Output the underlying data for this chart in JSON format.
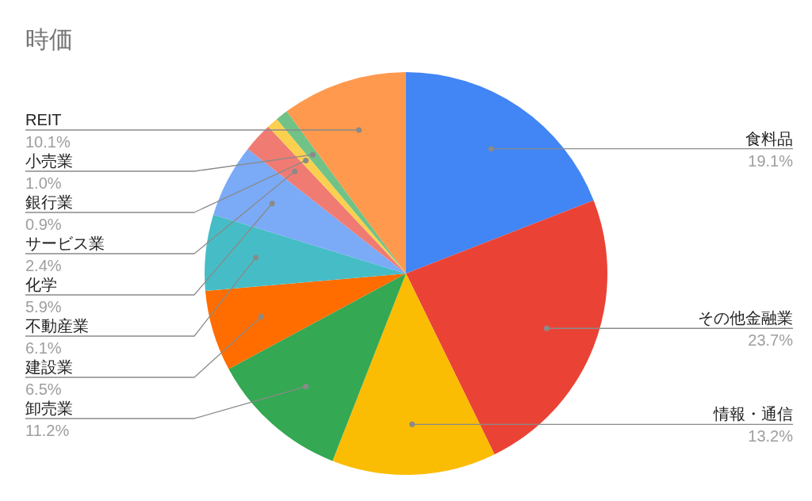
{
  "chart_data": {
    "type": "pie",
    "title": "時価",
    "categories": [
      "食料品",
      "その他金融業",
      "情報・通信",
      "卸売業",
      "建設業",
      "不動産業",
      "化学",
      "サービス業",
      "銀行業",
      "小売業",
      "REIT"
    ],
    "values": [
      19.1,
      23.7,
      13.2,
      11.2,
      6.5,
      6.1,
      5.9,
      2.4,
      0.9,
      1.0,
      10.1
    ],
    "value_labels": [
      "19.1%",
      "23.7%",
      "13.2%",
      "11.2%",
      "6.5%",
      "6.1%",
      "5.9%",
      "2.4%",
      "0.9%",
      "1.0%",
      "10.1%"
    ],
    "colors": [
      "#4285f4",
      "#ea4335",
      "#fbbc04",
      "#34a853",
      "#ff6d01",
      "#46bdc6",
      "#7baaf7",
      "#f07b72",
      "#fcd04f",
      "#71c287",
      "#ff994d"
    ],
    "legend": false
  }
}
